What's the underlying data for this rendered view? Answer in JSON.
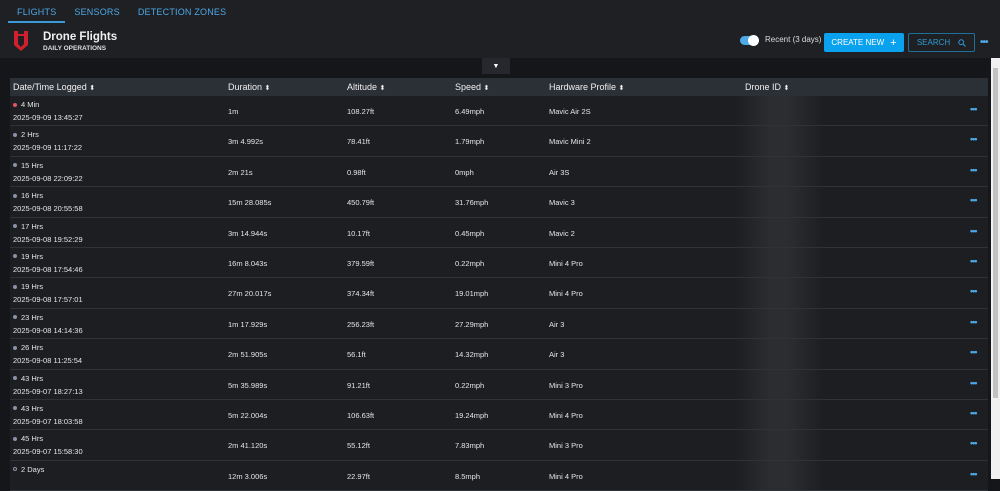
{
  "tabs": [
    {
      "label": "FLIGHTS",
      "active": true
    },
    {
      "label": "SENSORS"
    },
    {
      "label": "DETECTION ZONES"
    }
  ],
  "header": {
    "title": "Drone Flights",
    "subtitle": "DAILY OPERATIONS",
    "toggle_label": "Recent (3 days)",
    "toggle_on": true,
    "create_label": "CREATE NEW",
    "search_label": "SEARCH",
    "more": "•••"
  },
  "colors": {
    "accent": "#0aa2ef",
    "logo": "#d0202e",
    "recent_dot": "#e05561",
    "dot": "#8a93a6"
  },
  "columns": [
    "Date/Time Logged",
    "Duration",
    "Altitude",
    "Speed",
    "Hardware Profile",
    "Drone ID"
  ],
  "rows": [
    {
      "ago": "4 Min",
      "ts": "2025-09-09 13:45:27",
      "duration": "1m",
      "altitude": "108.27ft",
      "speed": "6.49mph",
      "hardware": "Mavic Air 2S",
      "status": "recent"
    },
    {
      "ago": "2 Hrs",
      "ts": "2025-09-09 11:17:22",
      "duration": "3m 4.992s",
      "altitude": "78.41ft",
      "speed": "1.79mph",
      "hardware": "Mavic Mini 2",
      "status": "filled"
    },
    {
      "ago": "15 Hrs",
      "ts": "2025-09-08 22:09:22",
      "duration": "2m 21s",
      "altitude": "0.98ft",
      "speed": "0mph",
      "hardware": "Air 3S",
      "status": "filled"
    },
    {
      "ago": "16 Hrs",
      "ts": "2025-09-08 20:55:58",
      "duration": "15m 28.085s",
      "altitude": "450.79ft",
      "speed": "31.76mph",
      "hardware": "Mavic 3",
      "status": "filled"
    },
    {
      "ago": "17 Hrs",
      "ts": "2025-09-08 19:52:29",
      "duration": "3m 14.944s",
      "altitude": "10.17ft",
      "speed": "0.45mph",
      "hardware": "Mavic 2",
      "status": "filled"
    },
    {
      "ago": "19 Hrs",
      "ts": "2025-09-08 17:54:46",
      "duration": "16m 8.043s",
      "altitude": "379.59ft",
      "speed": "0.22mph",
      "hardware": "Mini 4 Pro",
      "status": "filled"
    },
    {
      "ago": "19 Hrs",
      "ts": "2025-09-08 17:57:01",
      "duration": "27m 20.017s",
      "altitude": "374.34ft",
      "speed": "19.01mph",
      "hardware": "Mini 4 Pro",
      "status": "filled"
    },
    {
      "ago": "23 Hrs",
      "ts": "2025-09-08 14:14:36",
      "duration": "1m 17.929s",
      "altitude": "256.23ft",
      "speed": "27.29mph",
      "hardware": "Air 3",
      "status": "filled"
    },
    {
      "ago": "26 Hrs",
      "ts": "2025-09-08 11:25:54",
      "duration": "2m 51.905s",
      "altitude": "56.1ft",
      "speed": "14.32mph",
      "hardware": "Air 3",
      "status": "filled"
    },
    {
      "ago": "43 Hrs",
      "ts": "2025-09-07 18:27:13",
      "duration": "5m 35.989s",
      "altitude": "91.21ft",
      "speed": "0.22mph",
      "hardware": "Mini 3 Pro",
      "status": "filled"
    },
    {
      "ago": "43 Hrs",
      "ts": "2025-09-07 18:03:58",
      "duration": "5m 22.004s",
      "altitude": "106.63ft",
      "speed": "19.24mph",
      "hardware": "Mini 4 Pro",
      "status": "filled"
    },
    {
      "ago": "45 Hrs",
      "ts": "2025-09-07 15:58:30",
      "duration": "2m 41.120s",
      "altitude": "55.12ft",
      "speed": "7.83mph",
      "hardware": "Mini 3 Pro",
      "status": "filled"
    },
    {
      "ago": "2 Days",
      "ts": "",
      "duration": "12m 3.006s",
      "altitude": "22.97ft",
      "speed": "8.5mph",
      "hardware": "Mini 4 Pro",
      "status": "hollow"
    }
  ]
}
